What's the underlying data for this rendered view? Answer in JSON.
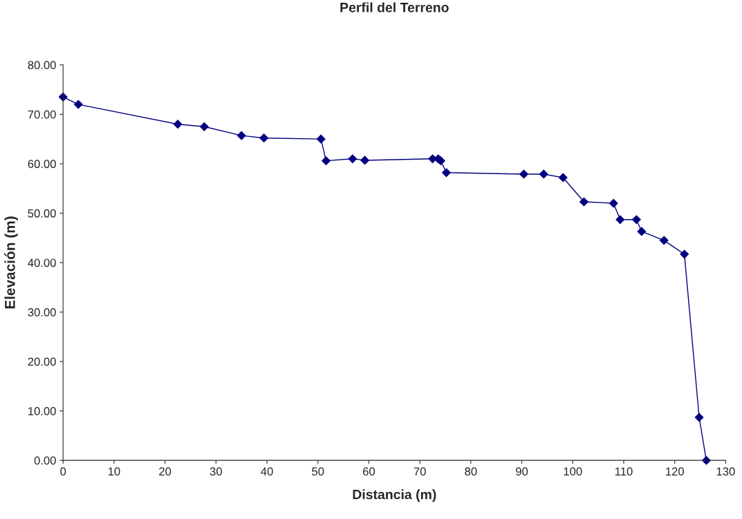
{
  "chart_data": {
    "type": "line",
    "title": "Perfil del Terreno",
    "xlabel": "Distancia (m)",
    "ylabel": "Elevación (m)",
    "x": [
      0,
      3,
      22.5,
      27.7,
      35,
      39.4,
      50.6,
      51.6,
      56.8,
      59.2,
      72.5,
      73.6,
      74.1,
      75.2,
      90.4,
      94.3,
      98.1,
      102.2,
      108,
      109.3,
      112.5,
      113.5,
      117.9,
      121.9,
      124.8,
      126.2
    ],
    "series": [
      {
        "color": "#000080",
        "values": [
          73.5,
          72,
          68,
          67.5,
          65.7,
          65.2,
          65,
          60.6,
          61,
          60.7,
          61,
          61,
          60.6,
          58.2,
          57.9,
          57.9,
          57.2,
          52.3,
          52,
          48.7,
          48.7,
          46.3,
          44.5,
          41.7,
          8.7,
          0
        ]
      }
    ],
    "xlim": [
      0,
      130
    ],
    "xticks": [
      0,
      10,
      20,
      30,
      40,
      50,
      60,
      70,
      80,
      90,
      100,
      110,
      120,
      130
    ],
    "ylim": [
      0,
      80
    ],
    "yticks": [
      {
        "value": 0,
        "label": "0.00"
      },
      {
        "value": 10,
        "label": "10.00"
      },
      {
        "value": 20,
        "label": "20.00"
      },
      {
        "value": 30,
        "label": "30.00"
      },
      {
        "value": 40,
        "label": "40.00"
      },
      {
        "value": 50,
        "label": "50.00"
      },
      {
        "value": 60,
        "label": "60.00"
      },
      {
        "value": 70,
        "label": "70.00"
      },
      {
        "value": 80,
        "label": "80.00"
      }
    ],
    "marker": "diamond",
    "line_style": "solid",
    "grid": false,
    "legend": false
  }
}
